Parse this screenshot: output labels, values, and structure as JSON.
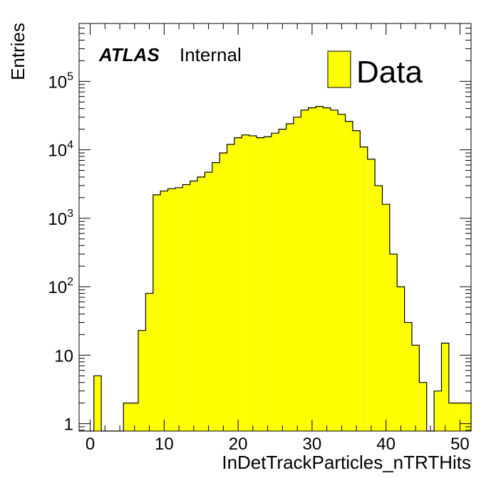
{
  "chart_data": {
    "type": "histogram",
    "title": "",
    "label_atlas": "ATLAS",
    "label_internal": "Internal",
    "xlabel": "InDetTrackParticles_nTRTHits",
    "ylabel": "Entries",
    "legend_label": "Data",
    "legend_position": "top-right",
    "fill_color": "#ffff00",
    "line_color": "#000000",
    "y_scale": "log",
    "xlim": [
      -1.5,
      51.5
    ],
    "ylim": [
      0.78,
      700000
    ],
    "x_ticks": [
      0,
      10,
      20,
      30,
      40,
      50
    ],
    "x_tick_labels": [
      "0",
      "10",
      "20",
      "30",
      "40",
      "50"
    ],
    "y_ticks": [
      1,
      10,
      100,
      1000,
      10000,
      100000
    ],
    "y_tick_labels": [
      {
        "base": "1",
        "exp": ""
      },
      {
        "base": "10",
        "exp": ""
      },
      {
        "base": "10",
        "exp": "2"
      },
      {
        "base": "10",
        "exp": "3"
      },
      {
        "base": "10",
        "exp": "4"
      },
      {
        "base": "10",
        "exp": "5"
      }
    ],
    "bin_edges": [
      -0.5,
      51.5
    ],
    "bin_width": 1,
    "series": [
      {
        "name": "Data",
        "values": [
          0,
          5,
          0,
          0,
          0,
          2,
          2,
          23,
          80,
          2200,
          2500,
          2700,
          2800,
          3100,
          3500,
          4000,
          4700,
          6500,
          9000,
          12000,
          15000,
          16500,
          16000,
          15000,
          15500,
          17500,
          20000,
          24000,
          30000,
          38000,
          41000,
          43000,
          41000,
          38000,
          33000,
          26000,
          19000,
          11000,
          7300,
          3000,
          1600,
          300,
          100,
          30,
          14,
          4,
          0,
          3,
          15,
          2,
          2,
          2
        ]
      }
    ]
  }
}
